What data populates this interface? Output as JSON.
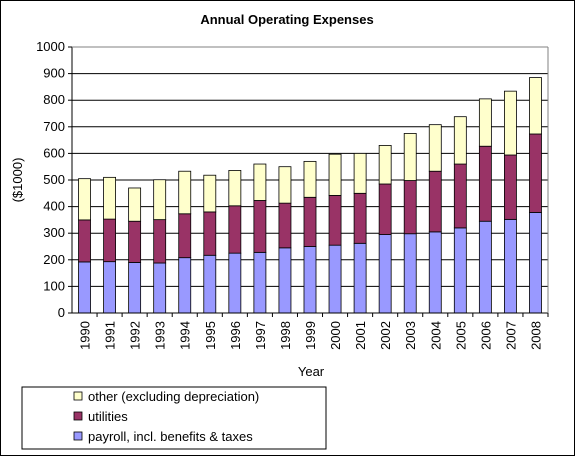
{
  "chart_data": {
    "type": "bar",
    "stacked": true,
    "title": "Annual Operating Expenses",
    "xlabel": "Year",
    "ylabel": "($1000)",
    "ylim": [
      0,
      1000
    ],
    "ytick_step": 100,
    "grid": true,
    "legend_position": "bottom-left",
    "categories": [
      "1990",
      "1991",
      "1992",
      "1993",
      "1994",
      "1995",
      "1996",
      "1997",
      "1998",
      "1999",
      "2000",
      "2001",
      "2002",
      "2003",
      "2004",
      "2005",
      "2006",
      "2007",
      "2008"
    ],
    "series": [
      {
        "name": "payroll, incl. benefits & taxes",
        "color": "#9999ff",
        "values": [
          192,
          193,
          190,
          188,
          208,
          217,
          225,
          228,
          245,
          250,
          255,
          262,
          295,
          298,
          305,
          320,
          345,
          352,
          378
        ]
      },
      {
        "name": "utilities",
        "color": "#993366",
        "values": [
          158,
          160,
          155,
          163,
          165,
          163,
          178,
          195,
          168,
          185,
          187,
          188,
          190,
          200,
          228,
          240,
          282,
          242,
          295
        ]
      },
      {
        "name": "other (excluding depreciation)",
        "color": "#ffffcc",
        "values": [
          155,
          157,
          125,
          150,
          160,
          138,
          133,
          137,
          137,
          135,
          155,
          150,
          145,
          177,
          175,
          178,
          178,
          240,
          212
        ]
      }
    ],
    "legend_order": [
      2,
      1,
      0
    ]
  }
}
